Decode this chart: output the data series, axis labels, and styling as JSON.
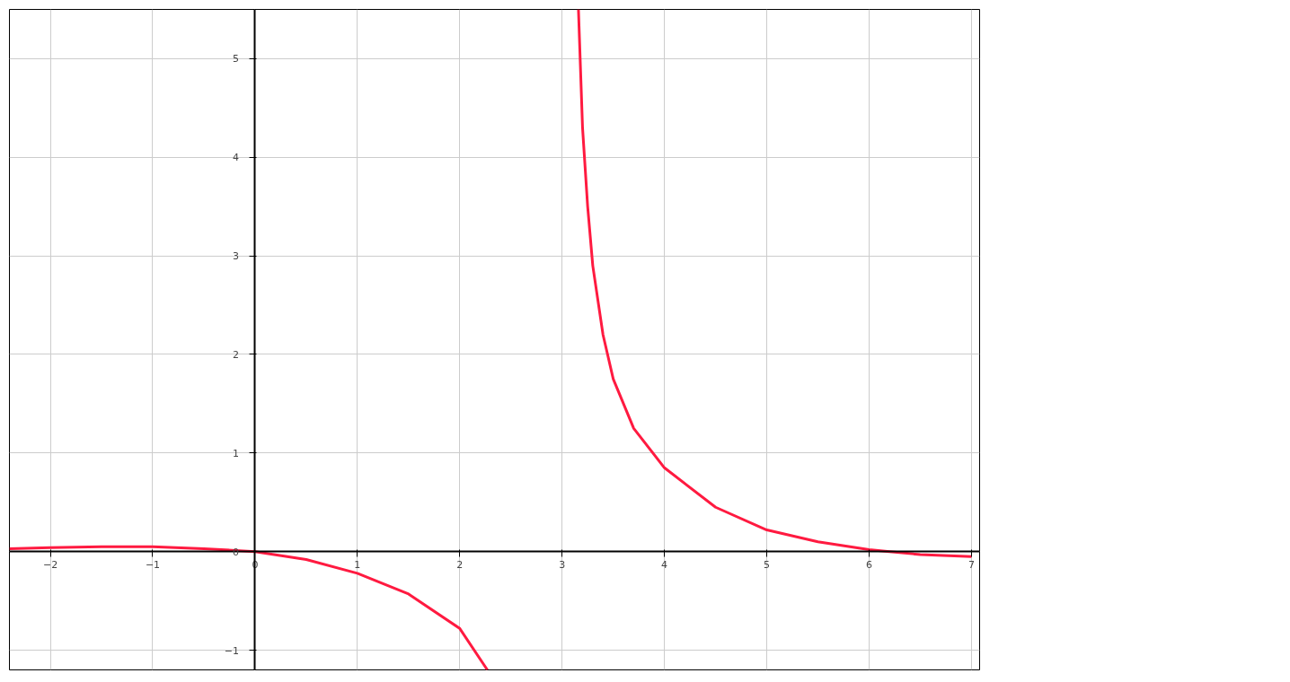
{
  "chart_data": {
    "type": "line",
    "xlim": [
      -2.4,
      7.08
    ],
    "ylim": [
      -1.2,
      5.5
    ],
    "xticks": [
      -2,
      -1,
      0,
      1,
      2,
      3,
      4,
      5,
      6,
      7
    ],
    "yticks": [
      -1,
      0,
      1,
      2,
      3,
      4,
      5
    ],
    "grid": true,
    "line_style": "solid",
    "marker": "none",
    "series": [
      {
        "color": "#ff1a40",
        "x": [
          -2.4,
          -2,
          -1.5,
          -1,
          -0.5,
          0,
          0.5,
          1,
          1.5,
          2,
          2.27
        ],
        "values": [
          0.03,
          0.04,
          0.05,
          0.05,
          0.03,
          0,
          -0.08,
          -0.22,
          -0.43,
          -0.78,
          -1.2
        ]
      },
      {
        "color": "#ff1a40",
        "x": [
          3.16,
          3.2,
          3.25,
          3.3,
          3.4,
          3.5,
          3.7,
          4,
          4.5,
          5,
          5.5,
          6,
          6.2,
          6.5,
          7
        ],
        "values": [
          5.5,
          4.3,
          3.5,
          2.9,
          2.2,
          1.75,
          1.25,
          0.85,
          0.45,
          0.22,
          0.1,
          0.02,
          0,
          -0.03,
          -0.05
        ]
      }
    ]
  }
}
